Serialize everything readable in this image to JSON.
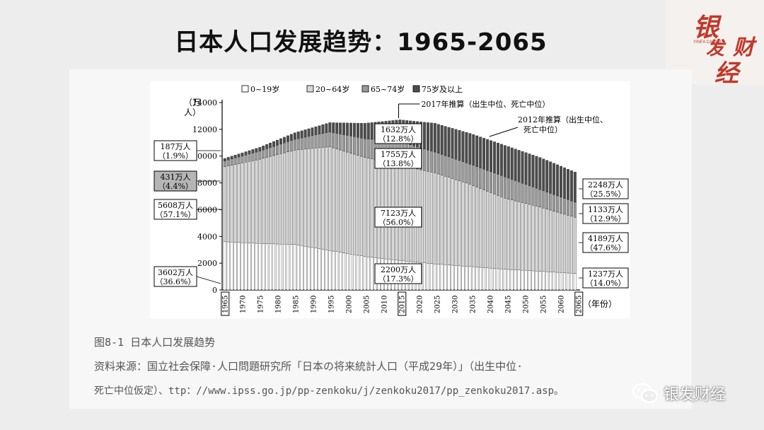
{
  "slide": {
    "title": "日本人口发展趋势：1965-2065"
  },
  "logo": {
    "chars": [
      "银",
      "发",
      "财",
      "经"
    ],
    "subtitle": "YINFA CAIJING"
  },
  "figure": {
    "caption": "图8-1 日本人口发展趋势",
    "source_line1": "资料来源：国立社会保障·人口問題研究所「日本の将来統計人口（平成29年）」（出生中位·",
    "source_line2": "死亡中位仮定）、ttp：//www.ipss.go.jp/pp-zenkoku/j/zenkoku2017/pp_zenkoku2017.asp。"
  },
  "watermark": {
    "name": "银发财经"
  },
  "chart_data": {
    "type": "bar",
    "stacked": true,
    "ylabel": "（万人）",
    "xlabel": "（年份）",
    "ylim": [
      0,
      14000
    ],
    "yticks": [
      0,
      2000,
      4000,
      6000,
      8000,
      10000,
      12000,
      14000
    ],
    "xticks": [
      1965,
      1970,
      1975,
      1980,
      1985,
      1990,
      1995,
      2000,
      2005,
      2010,
      2015,
      2020,
      2025,
      2030,
      2035,
      2040,
      2045,
      2050,
      2055,
      2060,
      2065
    ],
    "boxed_xticks": [
      1965,
      2015,
      2065
    ],
    "legend": [
      "0~19岁",
      "20~64岁",
      "65~74岁",
      "75岁及以上"
    ],
    "legend_colors": [
      "#ffffff",
      "#d8d8d8",
      "#9a9a9a",
      "#4d4d4d"
    ],
    "years": [
      1965,
      1975,
      1985,
      1995,
      2005,
      2015,
      2025,
      2035,
      2045,
      2055,
      2065
    ],
    "series": [
      {
        "name": "0~19岁",
        "values": [
          3602,
          3470,
          3400,
          2950,
          2500,
          2200,
          1950,
          1750,
          1550,
          1400,
          1237
        ]
      },
      {
        "name": "20~64岁",
        "values": [
          5608,
          6300,
          7050,
          7750,
          7400,
          7123,
          6800,
          6150,
          5300,
          4800,
          4189
        ]
      },
      {
        "name": "65~74岁",
        "values": [
          431,
          600,
          800,
          1100,
          1400,
          1755,
          1550,
          1500,
          1600,
          1300,
          1133
        ]
      },
      {
        "name": "75岁及以上",
        "values": [
          187,
          290,
          490,
          700,
          1150,
          1632,
          2150,
          2300,
          2350,
          2400,
          2248
        ]
      }
    ],
    "annotations": {
      "projection_2017": "2017年推算（出生中位、死亡中位）",
      "projection_2012_line1": "2012年推算（出生中位、",
      "projection_2012_line2": "死亡中位）"
    },
    "label_1965": [
      {
        "line1": "187万人",
        "line2": "（1.9%）"
      },
      {
        "line1": "431万人",
        "line2": "（4.4%）"
      },
      {
        "line1": "5608万人",
        "line2": "（57.1%）"
      },
      {
        "line1": "3602万人",
        "line2": "（36.6%）"
      }
    ],
    "label_2015": [
      {
        "line1": "1632万人",
        "line2": "（12.8%）"
      },
      {
        "line1": "1755万人",
        "line2": "（13.8%）"
      },
      {
        "line1": "7123万人",
        "line2": "（56.0%）"
      },
      {
        "line1": "2200万人",
        "line2": "（17.3%）"
      }
    ],
    "label_2065": [
      {
        "line1": "2248万人",
        "line2": "（25.5%）"
      },
      {
        "line1": "1133万人",
        "line2": "（12.9%）"
      },
      {
        "line1": "4189万人",
        "line2": "（47.6%）"
      },
      {
        "line1": "1237万人",
        "line2": "（14.0%）"
      }
    ]
  }
}
